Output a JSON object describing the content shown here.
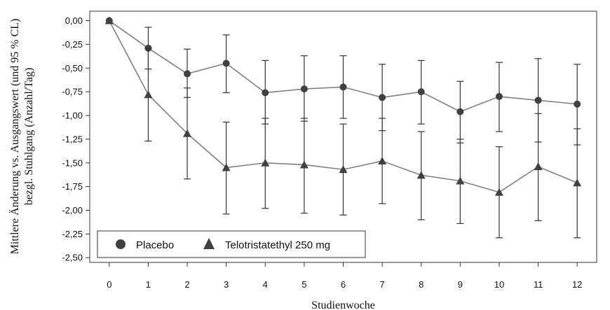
{
  "chart_data": {
    "type": "line",
    "xlabel": "Studienwoche",
    "ylabel_line1": "Mittlere Änderung vs. Ausgangswert (und 95 % CL)",
    "ylabel_line2": "bezgl. Stuhlgang (Anzahl/Tag)",
    "x": [
      0,
      1,
      2,
      3,
      4,
      5,
      6,
      7,
      8,
      9,
      10,
      11,
      12
    ],
    "xlim": [
      -0.5,
      12.5
    ],
    "ylim": [
      -2.55,
      0.1
    ],
    "x_ticks": [
      0,
      1,
      2,
      3,
      4,
      5,
      6,
      7,
      8,
      9,
      10,
      11,
      12
    ],
    "x_tick_labels": [
      "0",
      "1",
      "2",
      "3",
      "4",
      "5",
      "6",
      "7",
      "8",
      "9",
      "10",
      "11",
      "12"
    ],
    "y_ticks": [
      0,
      -0.25,
      -0.5,
      -0.75,
      -1.0,
      -1.25,
      -1.5,
      -1.75,
      -2.0,
      -2.25,
      -2.5
    ],
    "y_tick_labels": [
      "0,00",
      "-0,25",
      "-0,50",
      "-0,75",
      "-1,00",
      "-1,25",
      "-1,50",
      "-1,75",
      "-2,00",
      "-2,25",
      "-2,50"
    ],
    "grid": false,
    "legend_position": "bottom-left",
    "series": [
      {
        "name": "Placebo",
        "marker": "circle",
        "color": "#808080",
        "values": [
          0,
          -0.29,
          -0.56,
          -0.45,
          -0.76,
          -0.72,
          -0.7,
          -0.81,
          -0.75,
          -0.96,
          -0.8,
          -0.84,
          -0.88
        ],
        "lower": [
          0,
          -0.51,
          -0.81,
          -0.76,
          -1.09,
          -1.06,
          -1.03,
          -1.16,
          -1.09,
          -1.29,
          -1.17,
          -1.28,
          -1.31
        ],
        "upper": [
          0,
          -0.07,
          -0.3,
          -0.15,
          -0.42,
          -0.37,
          -0.37,
          -0.46,
          -0.42,
          -0.64,
          -0.44,
          -0.4,
          -0.46
        ]
      },
      {
        "name": "Telotristatethyl 250 mg",
        "marker": "triangle",
        "color": "#808080",
        "values": [
          0,
          -0.78,
          -1.19,
          -1.55,
          -1.5,
          -1.52,
          -1.57,
          -1.48,
          -1.63,
          -1.69,
          -1.81,
          -1.54,
          -1.71
        ],
        "lower": [
          0,
          -1.27,
          -1.67,
          -2.04,
          -1.98,
          -2.03,
          -2.05,
          -1.93,
          -2.1,
          -2.14,
          -2.29,
          -2.11,
          -2.29
        ],
        "upper": [
          0,
          -0.29,
          -0.71,
          -1.07,
          -1.03,
          -1.03,
          -1.09,
          -1.03,
          -1.17,
          -1.25,
          -1.33,
          -0.98,
          -1.14
        ]
      }
    ]
  }
}
